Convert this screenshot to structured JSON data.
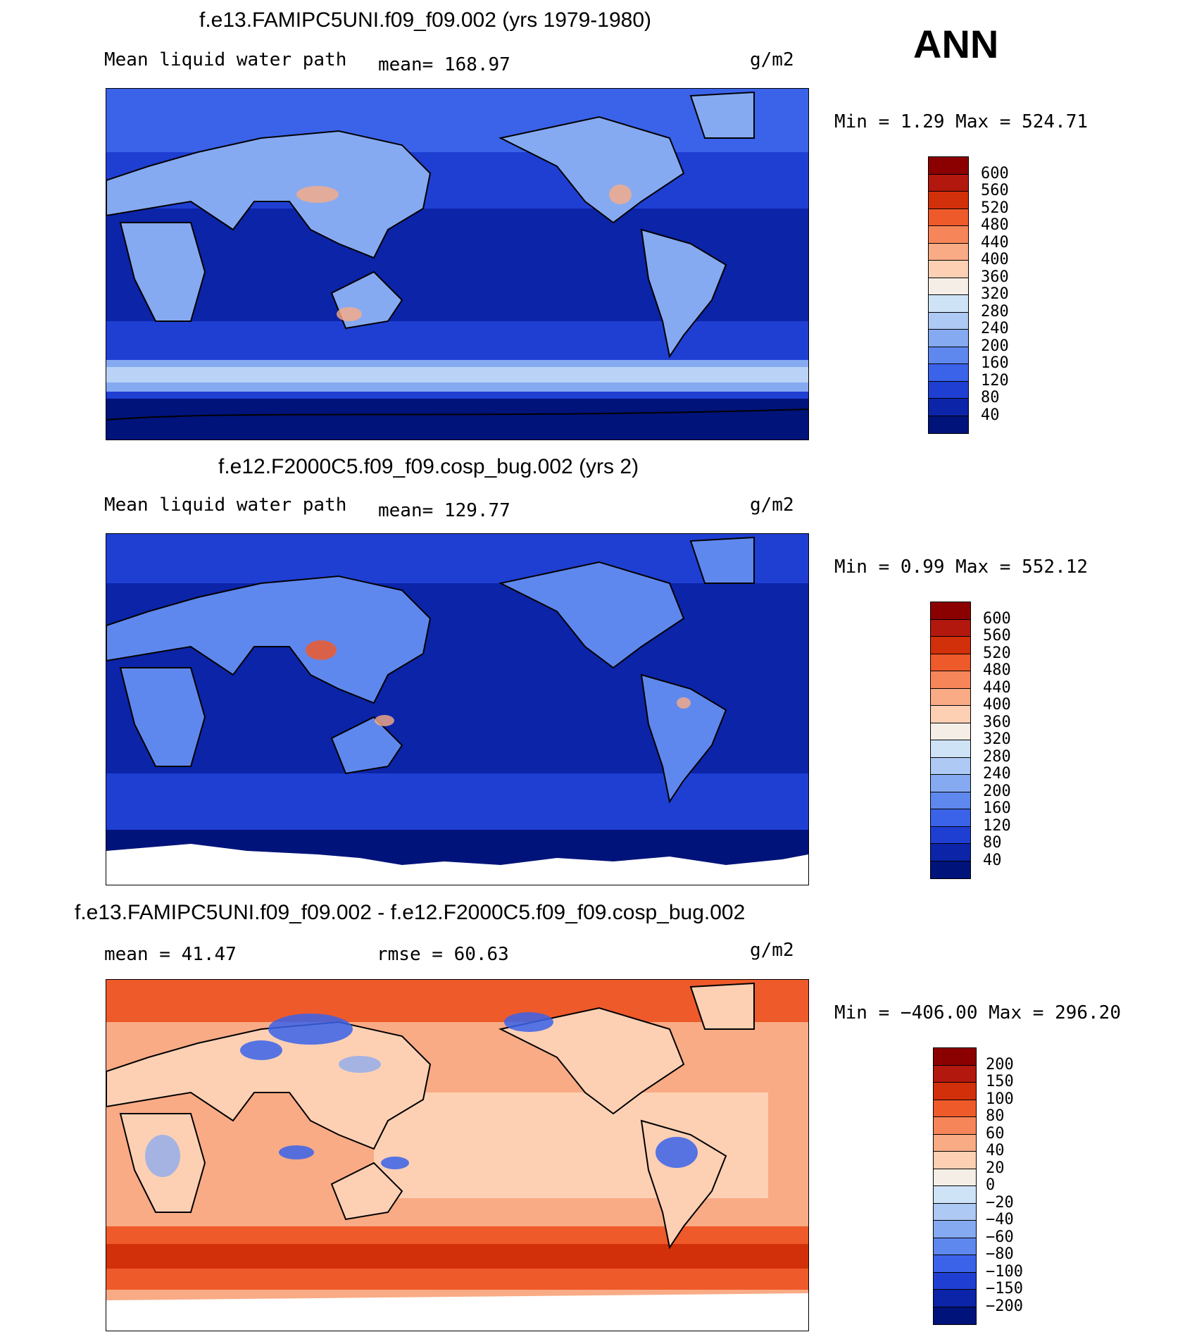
{
  "season": "ANN",
  "panels": [
    {
      "title": "f.e13.FAMIPC5UNI.f09_f09.002 (yrs 1979-1980)",
      "left_label": "Mean liquid water path",
      "mid_label": "mean=  168.97",
      "units": "g/m2",
      "minmax": "Min =    1.29 Max = 524.71",
      "palette": "blues",
      "colorbar_labels": [
        "600",
        "560",
        "520",
        "480",
        "440",
        "400",
        "360",
        "320",
        "280",
        "240",
        "200",
        "160",
        "120",
        "80",
        "40"
      ],
      "colors": [
        "#8b0000",
        "#b2180e",
        "#d2300a",
        "#ef5a2a",
        "#f7855a",
        "#f9ab85",
        "#fdd0b4",
        "#f5eee6",
        "#cfe3f7",
        "#adc9f4",
        "#86aaf1",
        "#5f88ee",
        "#3a63ea",
        "#1f3fd3",
        "#0b24a8",
        "#00137a"
      ]
    },
    {
      "title": "f.e12.F2000C5.f09_f09.cosp_bug.002 (yrs 2)",
      "left_label": "Mean liquid water path",
      "mid_label": "mean=  129.77",
      "units": "g/m2",
      "minmax": "Min =   0.99 Max = 552.12",
      "palette": "blues",
      "colorbar_labels": [
        "600",
        "560",
        "520",
        "480",
        "440",
        "400",
        "360",
        "320",
        "280",
        "240",
        "200",
        "160",
        "120",
        "80",
        "40"
      ],
      "colors": [
        "#8b0000",
        "#b2180e",
        "#d2300a",
        "#ef5a2a",
        "#f7855a",
        "#f9ab85",
        "#fdd0b4",
        "#f5eee6",
        "#cfe3f7",
        "#adc9f4",
        "#86aaf1",
        "#5f88ee",
        "#3a63ea",
        "#1f3fd3",
        "#0b24a8",
        "#00137a"
      ]
    },
    {
      "title": "f.e13.FAMIPC5UNI.f09_f09.002 - f.e12.F2000C5.f09_f09.cosp_bug.002",
      "left_label": "mean =   41.47",
      "mid_label": "rmse =   60.63",
      "units": "g/m2",
      "minmax": "Min = −406.00 Max = 296.20",
      "palette": "reds",
      "colorbar_labels": [
        "200",
        "150",
        "100",
        "80",
        "60",
        "40",
        "20",
        "0",
        "−20",
        "−40",
        "−60",
        "−80",
        "−100",
        "−150",
        "−200"
      ],
      "colors": [
        "#8b0000",
        "#b2180e",
        "#d2300a",
        "#ef5a2a",
        "#f7855a",
        "#f9ab85",
        "#fdd0b4",
        "#f5eee6",
        "#cfe3f7",
        "#adc9f4",
        "#86aaf1",
        "#5f88ee",
        "#3a63ea",
        "#1f3fd3",
        "#0b24a8",
        "#00137a"
      ]
    }
  ]
}
